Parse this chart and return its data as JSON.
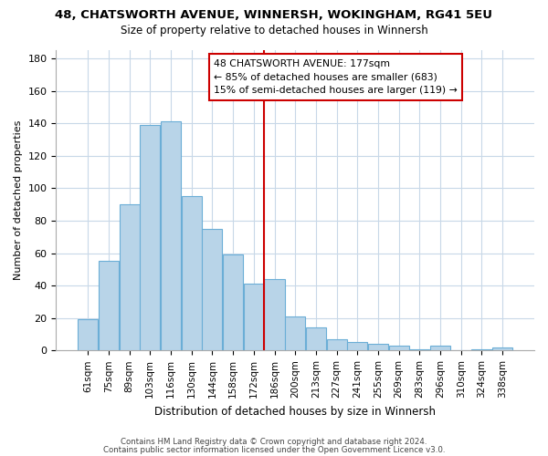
{
  "title": "48, CHATSWORTH AVENUE, WINNERSH, WOKINGHAM, RG41 5EU",
  "subtitle": "Size of property relative to detached houses in Winnersh",
  "xlabel": "Distribution of detached houses by size in Winnersh",
  "ylabel": "Number of detached properties",
  "bar_labels": [
    "61sqm",
    "75sqm",
    "89sqm",
    "103sqm",
    "116sqm",
    "130sqm",
    "144sqm",
    "158sqm",
    "172sqm",
    "186sqm",
    "200sqm",
    "213sqm",
    "227sqm",
    "241sqm",
    "255sqm",
    "269sqm",
    "283sqm",
    "296sqm",
    "310sqm",
    "324sqm",
    "338sqm"
  ],
  "bar_values": [
    19,
    55,
    90,
    139,
    141,
    95,
    75,
    59,
    41,
    44,
    21,
    14,
    7,
    5,
    4,
    3,
    1,
    3,
    0,
    1,
    2
  ],
  "bar_color": "#b8d4e8",
  "bar_edge_color": "#6baed6",
  "vline_color": "#cc0000",
  "vline_pos": 8.5,
  "annotation_line1": "48 CHATSWORTH AVENUE: 177sqm",
  "annotation_line2": "← 85% of detached houses are smaller (683)",
  "annotation_line3": "15% of semi-detached houses are larger (119) →",
  "annotation_box_color": "#ffffff",
  "annotation_box_edge": "#cc0000",
  "ylim": [
    0,
    185
  ],
  "yticks": [
    0,
    20,
    40,
    60,
    80,
    100,
    120,
    140,
    160,
    180
  ],
  "footer1": "Contains HM Land Registry data © Crown copyright and database right 2024.",
  "footer2": "Contains public sector information licensed under the Open Government Licence v3.0.",
  "bg_color": "#ffffff",
  "grid_color": "#c8d8e8",
  "title_fontsize": 9.5,
  "subtitle_fontsize": 8.5,
  "xlabel_fontsize": 8.5,
  "ylabel_fontsize": 8,
  "tick_fontsize": 8,
  "xtick_fontsize": 7.5,
  "footer_fontsize": 6.2
}
